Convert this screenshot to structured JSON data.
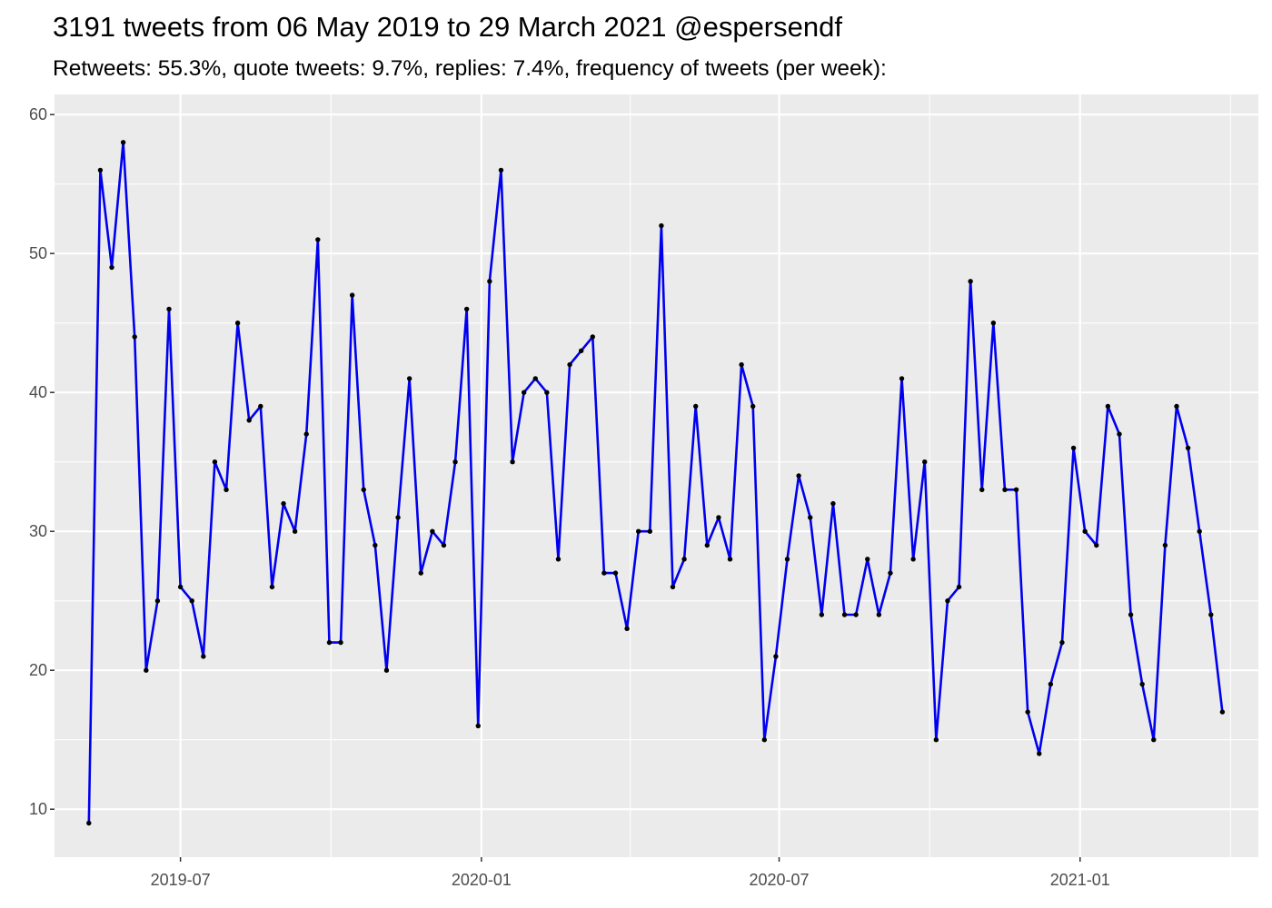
{
  "chart_data": {
    "type": "line",
    "title": "3191 tweets from 06 May 2019 to 29 March 2021 @espersendf",
    "subtitle": "Retweets: 55.3%, quote tweets: 9.7%, replies: 7.4%, frequency of tweets (per week):",
    "xlabel": "",
    "ylabel": "",
    "ylim": [
      10,
      60
    ],
    "xlim": [
      "2019-04-15",
      "2021-04-20"
    ],
    "x_ticks": [
      "2019-07",
      "2020-01",
      "2020-07",
      "2021-01"
    ],
    "y_ticks": [
      10,
      20,
      30,
      40,
      50,
      60
    ],
    "grid": true,
    "legend": "none",
    "series": [
      {
        "color": "#0000ee",
        "marker_color": "#000000",
        "x": [
          "2019-05-06",
          "2019-05-13",
          "2019-05-20",
          "2019-05-27",
          "2019-06-03",
          "2019-06-10",
          "2019-06-17",
          "2019-06-24",
          "2019-07-01",
          "2019-07-08",
          "2019-07-15",
          "2019-07-22",
          "2019-07-29",
          "2019-08-05",
          "2019-08-12",
          "2019-08-19",
          "2019-08-26",
          "2019-09-02",
          "2019-09-09",
          "2019-09-16",
          "2019-09-23",
          "2019-09-30",
          "2019-10-07",
          "2019-10-14",
          "2019-10-21",
          "2019-10-28",
          "2019-11-04",
          "2019-11-11",
          "2019-11-18",
          "2019-11-25",
          "2019-12-02",
          "2019-12-09",
          "2019-12-16",
          "2019-12-23",
          "2019-12-30",
          "2020-01-06",
          "2020-01-13",
          "2020-01-20",
          "2020-01-27",
          "2020-02-03",
          "2020-02-10",
          "2020-02-17",
          "2020-02-24",
          "2020-03-02",
          "2020-03-09",
          "2020-03-16",
          "2020-03-23",
          "2020-03-30",
          "2020-04-06",
          "2020-04-13",
          "2020-04-20",
          "2020-04-27",
          "2020-05-04",
          "2020-05-11",
          "2020-05-18",
          "2020-05-25",
          "2020-06-01",
          "2020-06-08",
          "2020-06-15",
          "2020-06-22",
          "2020-06-29",
          "2020-07-06",
          "2020-07-13",
          "2020-07-20",
          "2020-07-27",
          "2020-08-03",
          "2020-08-10",
          "2020-08-17",
          "2020-08-24",
          "2020-08-31",
          "2020-09-07",
          "2020-09-14",
          "2020-09-21",
          "2020-09-28",
          "2020-10-05",
          "2020-10-12",
          "2020-10-19",
          "2020-10-26",
          "2020-11-02",
          "2020-11-09",
          "2020-11-16",
          "2020-11-23",
          "2020-11-30",
          "2020-12-07",
          "2020-12-14",
          "2020-12-21",
          "2020-12-28",
          "2021-01-04",
          "2021-01-11",
          "2021-01-18",
          "2021-01-25",
          "2021-02-01",
          "2021-02-08",
          "2021-02-15",
          "2021-02-22",
          "2021-03-01",
          "2021-03-08",
          "2021-03-15",
          "2021-03-22",
          "2021-03-29"
        ],
        "values": [
          9,
          56,
          49,
          58,
          44,
          20,
          25,
          46,
          26,
          25,
          21,
          35,
          33,
          45,
          38,
          39,
          26,
          32,
          30,
          37,
          51,
          22,
          22,
          47,
          33,
          29,
          20,
          31,
          41,
          27,
          30,
          29,
          35,
          46,
          16,
          48,
          56,
          35,
          40,
          41,
          40,
          28,
          42,
          43,
          44,
          27,
          27,
          23,
          30,
          30,
          52,
          26,
          28,
          39,
          29,
          31,
          28,
          42,
          39,
          15,
          21,
          28,
          34,
          31,
          24,
          32,
          24,
          24,
          28,
          24,
          27,
          41,
          28,
          35,
          15,
          25,
          26,
          48,
          33,
          45,
          33,
          33,
          17,
          14,
          19,
          22,
          36,
          30,
          29,
          39,
          37,
          24,
          19,
          15,
          29,
          39,
          36,
          30,
          24,
          17
        ]
      }
    ]
  }
}
